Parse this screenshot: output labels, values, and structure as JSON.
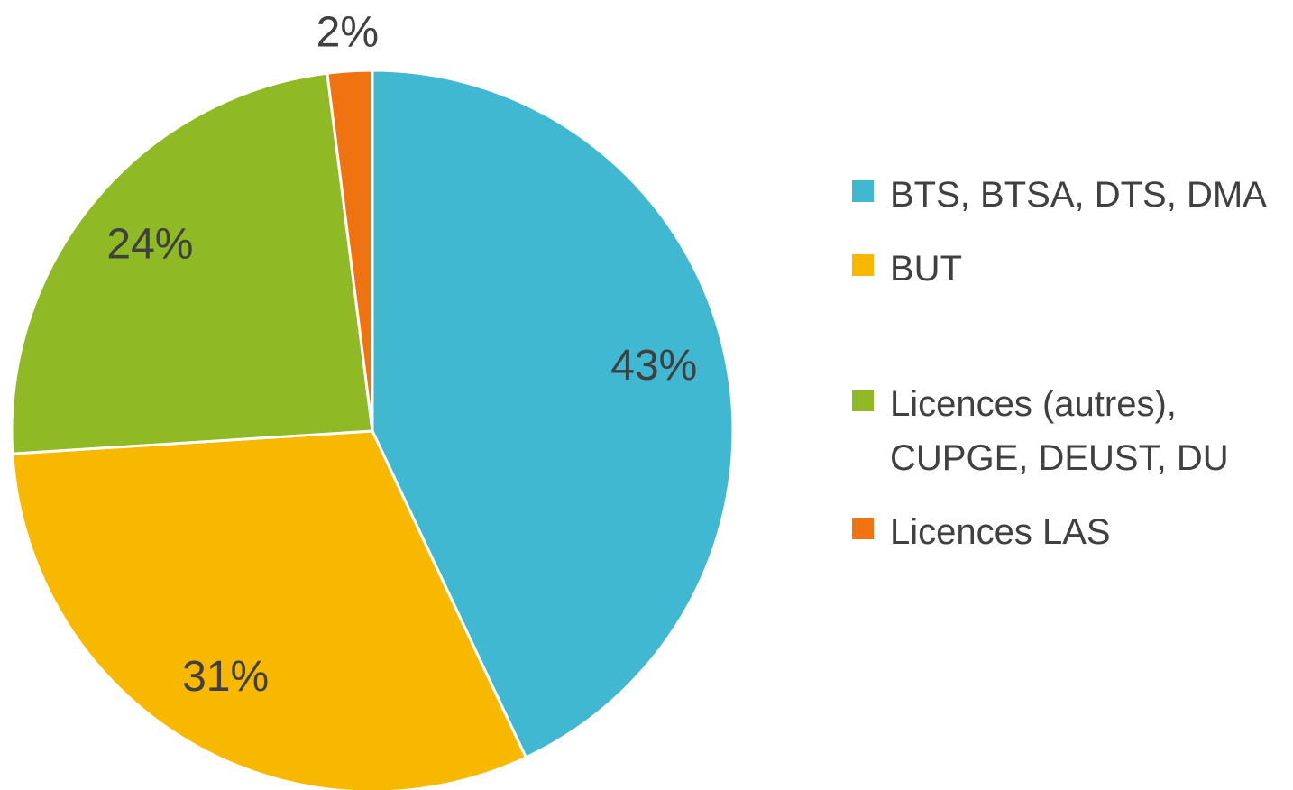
{
  "chart_data": {
    "type": "pie",
    "categories": [
      "BTS, BTSA, DTS, DMA",
      "BUT",
      "Licences (autres), CUPGE, DEUST, DU",
      "Licences LAS"
    ],
    "values": [
      43,
      31,
      24,
      2
    ],
    "value_labels": [
      "43%",
      "31%",
      "24%",
      "2%"
    ],
    "colors": [
      "#41b8d2",
      "#f9b800",
      "#8fba25",
      "#ef7310"
    ],
    "legend": "right"
  }
}
